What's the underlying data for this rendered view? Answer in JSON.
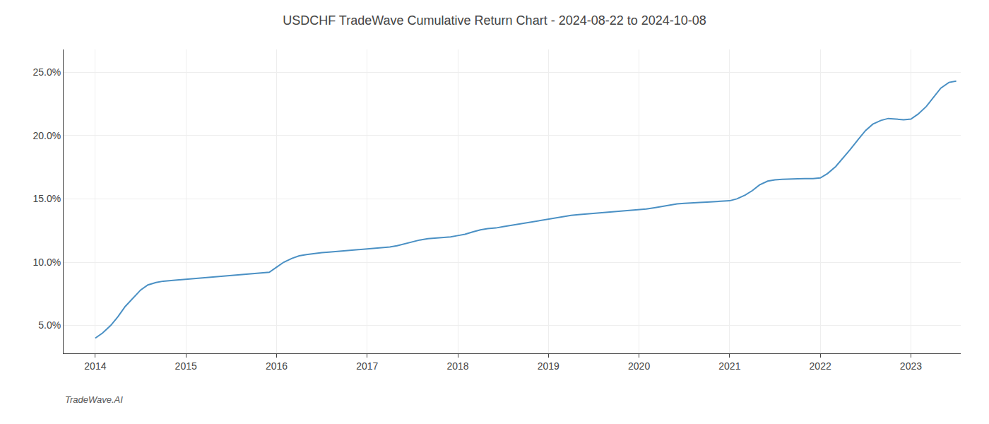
{
  "chart_data": {
    "type": "line",
    "title": "USDCHF TradeWave Cumulative Return Chart - 2024-08-22 to 2024-10-08",
    "annotations": [
      "TradeWave.AI"
    ],
    "color": "#4a90c4",
    "grid": true,
    "xlim": [
      2013.65,
      2023.55
    ],
    "ylim": [
      0.028,
      0.268
    ],
    "xticks": [
      2014,
      2015,
      2016,
      2017,
      2018,
      2019,
      2020,
      2021,
      2022,
      2023
    ],
    "yticks": [
      {
        "value": 0.05,
        "label": "5.0%"
      },
      {
        "value": 0.1,
        "label": "10.0%"
      },
      {
        "value": 0.15,
        "label": "15.0%"
      },
      {
        "value": 0.2,
        "label": "20.0%"
      },
      {
        "value": 0.25,
        "label": "25.0%"
      }
    ],
    "x": [
      2014.0,
      2014.08,
      2014.17,
      2014.25,
      2014.33,
      2014.42,
      2014.5,
      2014.58,
      2014.67,
      2014.75,
      2014.83,
      2014.92,
      2015.0,
      2015.08,
      2015.17,
      2015.25,
      2015.33,
      2015.42,
      2015.5,
      2015.58,
      2015.67,
      2015.75,
      2015.83,
      2015.92,
      2016.0,
      2016.08,
      2016.17,
      2016.25,
      2016.33,
      2016.42,
      2016.5,
      2016.58,
      2016.67,
      2016.75,
      2016.83,
      2016.92,
      2017.0,
      2017.08,
      2017.17,
      2017.25,
      2017.33,
      2017.42,
      2017.5,
      2017.58,
      2017.67,
      2017.75,
      2017.83,
      2017.92,
      2018.0,
      2018.08,
      2018.17,
      2018.25,
      2018.33,
      2018.42,
      2018.5,
      2018.58,
      2018.67,
      2018.75,
      2018.83,
      2018.92,
      2019.0,
      2019.08,
      2019.17,
      2019.25,
      2019.33,
      2019.42,
      2019.5,
      2019.58,
      2019.67,
      2019.75,
      2019.83,
      2019.92,
      2020.0,
      2020.08,
      2020.17,
      2020.25,
      2020.33,
      2020.42,
      2020.5,
      2020.58,
      2020.67,
      2020.75,
      2020.83,
      2020.92,
      2021.0,
      2021.08,
      2021.17,
      2021.25,
      2021.33,
      2021.42,
      2021.5,
      2021.58,
      2021.67,
      2021.75,
      2021.83,
      2021.92,
      2022.0,
      2022.08,
      2022.17,
      2022.25,
      2022.33,
      2022.42,
      2022.5,
      2022.58,
      2022.67,
      2022.75,
      2022.83,
      2022.92,
      2023.0,
      2023.08,
      2023.17,
      2023.25,
      2023.33,
      2023.42,
      2023.5
    ],
    "values": [
      0.04,
      0.044,
      0.05,
      0.057,
      0.065,
      0.072,
      0.078,
      0.082,
      0.084,
      0.085,
      0.0855,
      0.086,
      0.0865,
      0.087,
      0.0875,
      0.088,
      0.0885,
      0.089,
      0.0895,
      0.09,
      0.0905,
      0.091,
      0.0915,
      0.092,
      0.096,
      0.1,
      0.103,
      0.105,
      0.106,
      0.107,
      0.1075,
      0.108,
      0.1085,
      0.109,
      0.1095,
      0.11,
      0.1105,
      0.111,
      0.1115,
      0.112,
      0.113,
      0.1145,
      0.116,
      0.1175,
      0.1185,
      0.119,
      0.1195,
      0.12,
      0.121,
      0.122,
      0.124,
      0.1255,
      0.1265,
      0.127,
      0.128,
      0.129,
      0.13,
      0.131,
      0.132,
      0.133,
      0.134,
      0.135,
      0.136,
      0.137,
      0.1375,
      0.138,
      0.1385,
      0.139,
      0.1395,
      0.14,
      0.1405,
      0.141,
      0.1415,
      0.142,
      0.143,
      0.144,
      0.145,
      0.146,
      0.1465,
      0.147,
      0.1472,
      0.1475,
      0.1478,
      0.148,
      0.1485,
      0.15,
      0.153,
      0.1565,
      0.161,
      0.164,
      0.165,
      0.1655,
      0.1655,
      0.1658,
      0.166,
      0.166,
      0.1665,
      0.17,
      0.1755,
      0.182,
      0.189,
      0.197,
      0.204,
      0.209,
      0.212,
      0.2135,
      0.213,
      0.2125,
      0.213,
      0.217,
      0.223,
      0.23,
      0.2375,
      0.242,
      0.243
    ]
  }
}
